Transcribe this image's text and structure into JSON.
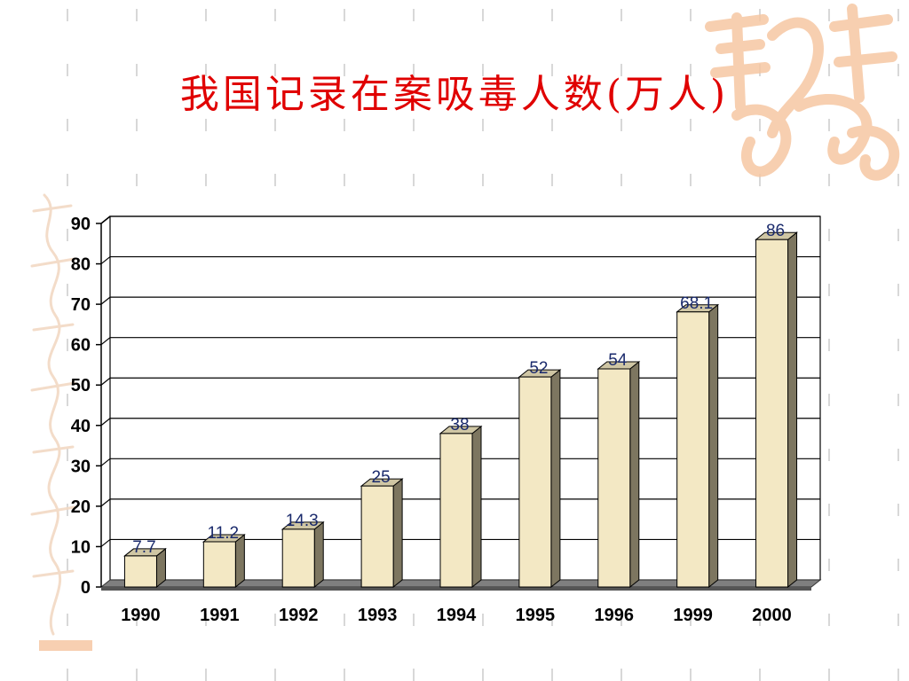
{
  "slide": {
    "title": "我国记录在案吸毒人数(万人)"
  },
  "colors": {
    "title": "#e00000",
    "bar_front": "#f3e8c4",
    "bar_side": "#7d7660",
    "bar_top": "#cfc6a4",
    "floor": "#7f7f7f",
    "grid": "#000000",
    "data_label": "#1a2a6c",
    "decoration": "#f6c7a3"
  },
  "chart_data": {
    "type": "bar",
    "title": "我国记录在案吸毒人数(万人)",
    "xlabel": "",
    "ylabel": "",
    "categories": [
      "1990",
      "1991",
      "1992",
      "1993",
      "1994",
      "1995",
      "1996",
      "1999",
      "2000"
    ],
    "series": [
      {
        "values": [
          7.7,
          11.2,
          14.3,
          25,
          38,
          52,
          54,
          68.1,
          86
        ],
        "data_labels": [
          "7.7",
          "11.2",
          "14.3",
          "25",
          "38",
          "52",
          "54",
          "68.1",
          "86"
        ]
      }
    ],
    "ylim": [
      0,
      90
    ],
    "yticks": [
      0,
      10,
      20,
      30,
      40,
      50,
      60,
      70,
      80,
      90
    ],
    "grid": true,
    "legend": "none",
    "style": "3d-columns"
  }
}
